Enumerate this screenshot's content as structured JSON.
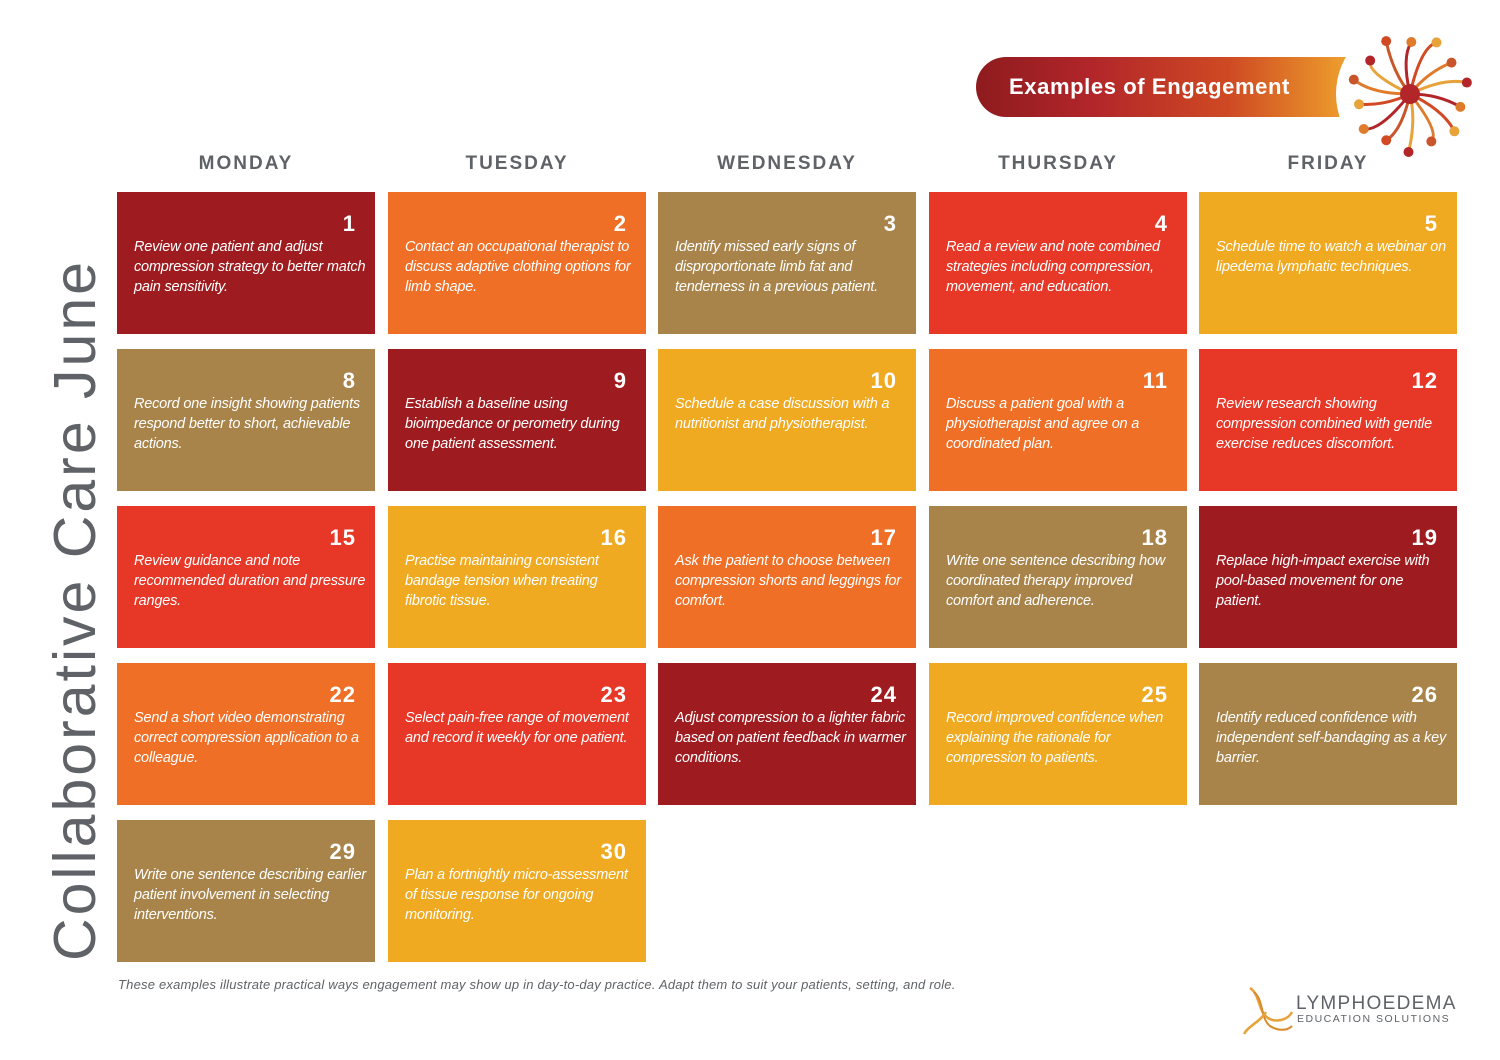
{
  "title": "Collaborative Care June",
  "banner": "Examples of Engagement",
  "days": [
    "MONDAY",
    "TUESDAY",
    "WEDNESDAY",
    "THURSDAY",
    "FRIDAY"
  ],
  "colors": {
    "maroon": "#9e1c20",
    "orange": "#ef6f26",
    "olive": "#a9844a",
    "red": "#e63727",
    "yellow": "#f0aa22",
    "text_gray": "#5f6367"
  },
  "cells": [
    {
      "day": "1",
      "color": "maroon",
      "text": "Review one patient and adjust compression strategy to better match pain sensitivity."
    },
    {
      "day": "2",
      "color": "orange",
      "text": "Contact an occupational therapist to discuss adaptive clothing options for limb shape."
    },
    {
      "day": "3",
      "color": "olive",
      "text": "Identify missed early signs of disproportionate limb fat and tenderness in a previous patient."
    },
    {
      "day": "4",
      "color": "red",
      "text": "Read a review and note combined strategies including compression, movement, and education."
    },
    {
      "day": "5",
      "color": "yellow",
      "text": "Schedule time to watch a webinar on lipedema lymphatic techniques."
    },
    {
      "day": "8",
      "color": "olive",
      "text": "Record one insight showing patients respond better to short, achievable actions."
    },
    {
      "day": "9",
      "color": "maroon",
      "text": "Establish a baseline using bioimpedance or perometry during one patient assessment."
    },
    {
      "day": "10",
      "color": "yellow",
      "text": "Schedule a case discussion with a nutritionist and physiotherapist."
    },
    {
      "day": "11",
      "color": "orange",
      "text": "Discuss a patient goal with a physiotherapist and agree on a coordinated plan."
    },
    {
      "day": "12",
      "color": "red",
      "text": "Review research showing compression combined with gentle exercise reduces discomfort."
    },
    {
      "day": "15",
      "color": "red",
      "text": "Review guidance and note recommended duration and pressure ranges."
    },
    {
      "day": "16",
      "color": "yellow",
      "text": "Practise maintaining consistent bandage tension when treating fibrotic tissue."
    },
    {
      "day": "17",
      "color": "orange",
      "text": "Ask the patient to choose between compression shorts and leggings for comfort."
    },
    {
      "day": "18",
      "color": "olive",
      "text": "Write one sentence describing how coordinated therapy improved comfort and adherence."
    },
    {
      "day": "19",
      "color": "maroon",
      "text": "Replace high-impact exercise with pool-based movement for one patient."
    },
    {
      "day": "22",
      "color": "orange",
      "text": "Send a short video demonstrating correct compression application to a colleague."
    },
    {
      "day": "23",
      "color": "red",
      "text": "Select pain-free range of movement and record it weekly for one patient."
    },
    {
      "day": "24",
      "color": "maroon",
      "text": "Adjust compression to a lighter fabric based on patient feedback in warmer conditions."
    },
    {
      "day": "25",
      "color": "yellow",
      "text": "Record improved confidence when explaining the rationale for compression to patients."
    },
    {
      "day": "26",
      "color": "olive",
      "text": "Identify reduced confidence with independent self-bandaging as a key barrier."
    },
    {
      "day": "29",
      "color": "olive",
      "text": "Write one sentence describing earlier patient involvement in selecting interventions."
    },
    {
      "day": "30",
      "color": "yellow",
      "text": "Plan a fortnightly micro-assessment of tissue response for ongoing monitoring."
    }
  ],
  "footnote": "These examples illustrate practical ways engagement may show up in day-to-day practice. Adapt them to suit your patients, setting, and role.",
  "brand": {
    "name": "LYMPHOEDEMA",
    "sub": "EDUCATION SOLUTIONS"
  }
}
